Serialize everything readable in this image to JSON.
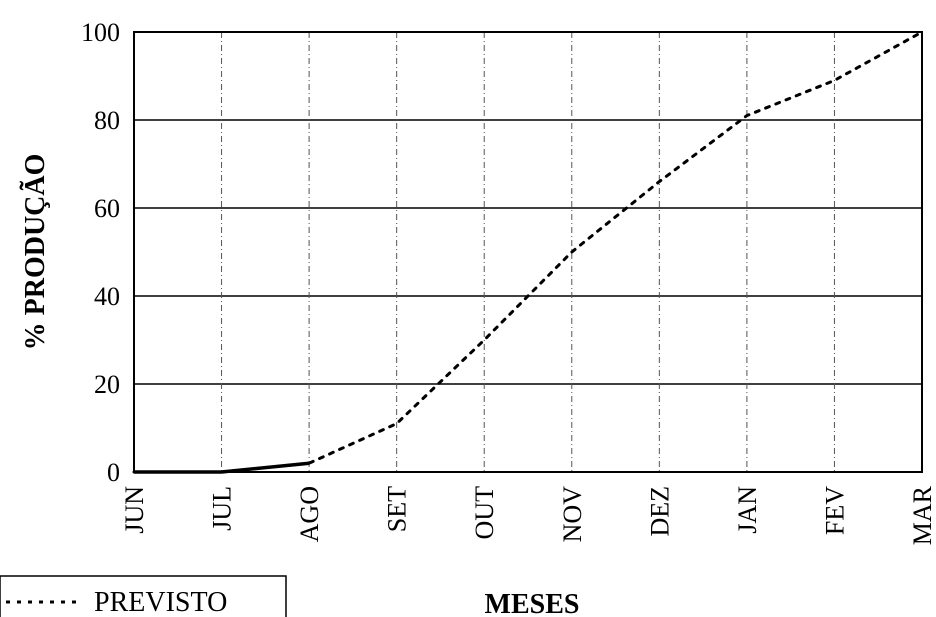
{
  "chart_data": {
    "type": "line",
    "categories": [
      "JUN",
      "JUL",
      "AGO",
      "SET",
      "OUT",
      "NOV",
      "DEZ",
      "JAN",
      "FEV",
      "MAR"
    ],
    "series": [
      {
        "name": "PREVISTO",
        "style": "dashed",
        "color": "#000000",
        "values": [
          0,
          0,
          2,
          11,
          30,
          50,
          66,
          81,
          89,
          100
        ]
      },
      {
        "style": "solid",
        "color": "#000000",
        "values": [
          0,
          0,
          2,
          null,
          null,
          null,
          null,
          null,
          null,
          null
        ]
      }
    ],
    "xlabel": "MESES",
    "ylabel": "% PRODUÇÃO",
    "ylim": [
      0,
      100
    ],
    "yticks": [
      0,
      20,
      40,
      60,
      80,
      100
    ],
    "grid": true,
    "legend": "bottom-left"
  }
}
